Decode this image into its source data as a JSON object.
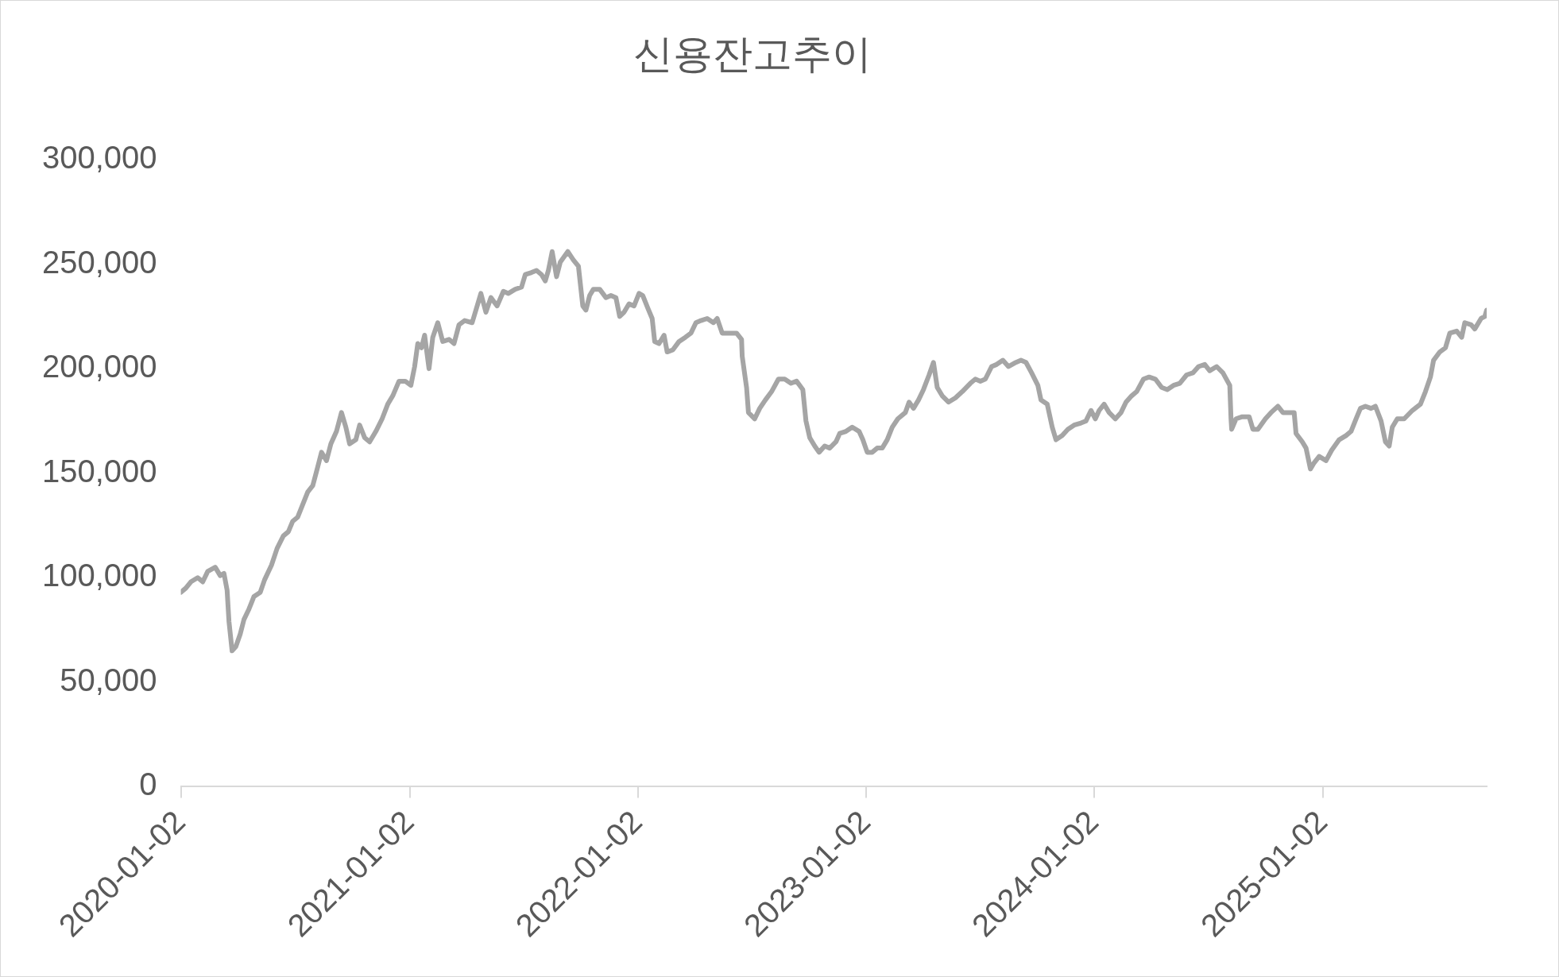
{
  "chart_data": {
    "type": "line",
    "title": "신용잔고추이",
    "color": "#a5a5a5",
    "marker": "none",
    "line_style": "solid",
    "grid": false,
    "legend": false,
    "xlim": [
      "2020-01-02",
      "2025-09-21"
    ],
    "xticks": [
      "2020-01-02",
      "2021-01-02",
      "2022-01-02",
      "2023-01-02",
      "2024-01-02",
      "2025-01-02"
    ],
    "ylim": [
      0,
      300000
    ],
    "yticks": [
      0,
      {
        "value": 50000,
        "label": "50,000"
      },
      {
        "value": 100000,
        "label": "100,000"
      },
      {
        "value": 150000,
        "label": "150,000"
      },
      {
        "value": 200000,
        "label": "200,000"
      },
      {
        "value": 250000,
        "label": "250,000"
      },
      {
        "value": 300000,
        "label": "300,000"
      }
    ],
    "x": [
      "2020-01-02",
      "2020-01-10",
      "2020-01-18",
      "2020-01-29",
      "2020-02-06",
      "2020-02-14",
      "2020-02-26",
      "2020-03-05",
      "2020-03-11",
      "2020-03-16",
      "2020-03-19",
      "2020-03-24",
      "2020-03-30",
      "2020-04-06",
      "2020-04-12",
      "2020-04-20",
      "2020-04-28",
      "2020-05-08",
      "2020-05-15",
      "2020-05-26",
      "2020-06-04",
      "2020-06-14",
      "2020-06-22",
      "2020-06-29",
      "2020-07-07",
      "2020-07-15",
      "2020-07-23",
      "2020-07-31",
      "2020-08-08",
      "2020-08-14",
      "2020-08-22",
      "2020-08-29",
      "2020-09-07",
      "2020-09-15",
      "2020-09-22",
      "2020-09-28",
      "2020-10-08",
      "2020-10-14",
      "2020-10-22",
      "2020-10-30",
      "2020-11-09",
      "2020-11-19",
      "2020-11-28",
      "2020-12-06",
      "2020-12-16",
      "2020-12-26",
      "2021-01-04",
      "2021-01-10",
      "2021-01-15",
      "2021-01-21",
      "2021-01-26",
      "2021-02-02",
      "2021-02-08",
      "2021-02-16",
      "2021-02-24",
      "2021-03-06",
      "2021-03-14",
      "2021-03-22",
      "2021-03-31",
      "2021-04-12",
      "2021-04-21",
      "2021-04-26",
      "2021-05-04",
      "2021-05-12",
      "2021-05-22",
      "2021-06-01",
      "2021-06-09",
      "2021-06-20",
      "2021-06-30",
      "2021-07-06",
      "2021-07-16",
      "2021-07-24",
      "2021-08-01",
      "2021-08-07",
      "2021-08-12",
      "2021-08-18",
      "2021-08-25",
      "2021-08-31",
      "2021-09-12",
      "2021-09-21",
      "2021-09-29",
      "2021-10-06",
      "2021-10-11",
      "2021-10-17",
      "2021-10-23",
      "2021-11-02",
      "2021-11-12",
      "2021-11-20",
      "2021-11-28",
      "2021-12-04",
      "2021-12-11",
      "2021-12-19",
      "2021-12-27",
      "2022-01-04",
      "2022-01-10",
      "2022-01-18",
      "2022-01-25",
      "2022-01-29",
      "2022-02-05",
      "2022-02-13",
      "2022-02-18",
      "2022-02-27",
      "2022-03-09",
      "2022-03-19",
      "2022-03-28",
      "2022-04-05",
      "2022-04-13",
      "2022-04-23",
      "2022-05-03",
      "2022-05-09",
      "2022-05-17",
      "2022-05-28",
      "2022-06-09",
      "2022-06-17",
      "2022-06-18",
      "2022-06-25",
      "2022-06-28",
      "2022-07-08",
      "2022-07-16",
      "2022-07-25",
      "2022-08-04",
      "2022-08-15",
      "2022-08-25",
      "2022-09-04",
      "2022-09-13",
      "2022-09-23",
      "2022-09-28",
      "2022-10-04",
      "2022-10-12",
      "2022-10-19",
      "2022-10-28",
      "2022-11-05",
      "2022-11-15",
      "2022-11-21",
      "2022-12-01",
      "2022-12-11",
      "2022-12-22",
      "2022-12-28",
      "2023-01-04",
      "2023-01-12",
      "2023-01-20",
      "2023-01-28",
      "2023-02-05",
      "2023-02-13",
      "2023-02-22",
      "2023-03-06",
      "2023-03-12",
      "2023-03-19",
      "2023-03-27",
      "2023-04-04",
      "2023-04-13",
      "2023-04-20",
      "2023-04-26",
      "2023-05-04",
      "2023-05-14",
      "2023-05-25",
      "2023-06-05",
      "2023-06-18",
      "2023-06-26",
      "2023-07-04",
      "2023-07-12",
      "2023-07-22",
      "2023-07-30",
      "2023-08-09",
      "2023-08-18",
      "2023-08-30",
      "2023-09-07",
      "2023-09-15",
      "2023-09-24",
      "2023-10-04",
      "2023-10-09",
      "2023-10-19",
      "2023-10-27",
      "2023-11-02",
      "2023-11-12",
      "2023-11-21",
      "2023-12-01",
      "2023-12-12",
      "2023-12-20",
      "2023-12-28",
      "2024-01-04",
      "2024-01-10",
      "2024-01-18",
      "2024-01-26",
      "2024-02-05",
      "2024-02-14",
      "2024-02-22",
      "2024-03-02",
      "2024-03-10",
      "2024-03-21",
      "2024-03-30",
      "2024-04-09",
      "2024-04-19",
      "2024-04-28",
      "2024-05-08",
      "2024-05-18",
      "2024-05-29",
      "2024-06-08",
      "2024-06-17",
      "2024-06-27",
      "2024-07-05",
      "2024-07-16",
      "2024-07-26",
      "2024-08-06",
      "2024-08-08",
      "2024-08-09",
      "2024-08-16",
      "2024-08-26",
      "2024-09-06",
      "2024-09-12",
      "2024-09-20",
      "2024-10-02",
      "2024-10-11",
      "2024-10-22",
      "2024-10-30",
      "2024-11-09",
      "2024-11-17",
      "2024-11-20",
      "2024-11-30",
      "2024-12-06",
      "2024-12-13",
      "2024-12-19",
      "2024-12-27",
      "2025-01-07",
      "2025-01-16",
      "2025-01-28",
      "2025-02-08",
      "2025-02-16",
      "2025-02-24",
      "2025-03-03",
      "2025-03-11",
      "2025-03-20",
      "2025-03-27",
      "2025-04-05",
      "2025-04-12",
      "2025-04-18",
      "2025-04-23",
      "2025-05-01",
      "2025-05-12",
      "2025-05-25",
      "2025-06-07",
      "2025-06-15",
      "2025-06-23",
      "2025-06-28",
      "2025-07-08",
      "2025-07-17",
      "2025-07-24",
      "2025-08-04",
      "2025-08-12",
      "2025-08-17",
      "2025-08-27",
      "2025-09-02",
      "2025-09-12",
      "2025-09-18",
      "2025-09-21"
    ],
    "values": [
      93000,
      95000,
      98000,
      100000,
      98000,
      103000,
      105000,
      101000,
      102000,
      94000,
      79000,
      65000,
      67000,
      73000,
      80000,
      85000,
      91000,
      93000,
      99000,
      106000,
      114000,
      120000,
      122000,
      127000,
      129000,
      135000,
      141000,
      144000,
      153000,
      160000,
      156000,
      164000,
      170000,
      179000,
      172000,
      164000,
      166000,
      173000,
      167000,
      165000,
      170000,
      176000,
      183000,
      187000,
      194000,
      194000,
      192000,
      201000,
      212000,
      210000,
      216000,
      200000,
      215000,
      222000,
      213000,
      214000,
      212000,
      221000,
      223000,
      222000,
      231000,
      236000,
      227000,
      234000,
      230000,
      237000,
      236000,
      238000,
      239000,
      245000,
      246000,
      247000,
      245000,
      242000,
      247000,
      256000,
      244000,
      251000,
      256000,
      252000,
      249000,
      230000,
      228000,
      235000,
      238000,
      238000,
      234000,
      235000,
      234000,
      225000,
      227000,
      231000,
      230000,
      236000,
      235000,
      229000,
      224000,
      213000,
      212000,
      216000,
      208000,
      209000,
      213000,
      215000,
      217000,
      222000,
      223000,
      224000,
      222000,
      224000,
      217000,
      217000,
      217000,
      214000,
      206000,
      191000,
      179000,
      176000,
      181000,
      185000,
      189000,
      195000,
      195000,
      193000,
      194000,
      190000,
      175000,
      167000,
      163000,
      160000,
      163000,
      162000,
      165000,
      169000,
      170000,
      172000,
      170000,
      166000,
      160000,
      160000,
      162000,
      162000,
      166000,
      172000,
      176000,
      179000,
      184000,
      181000,
      185000,
      190000,
      197000,
      203000,
      191000,
      187000,
      184000,
      186000,
      189000,
      193000,
      195000,
      194000,
      195000,
      201000,
      202000,
      204000,
      201000,
      203000,
      204000,
      203000,
      198000,
      192000,
      185000,
      183000,
      172000,
      166000,
      168000,
      171000,
      173000,
      174000,
      175000,
      180000,
      176000,
      180000,
      183000,
      179000,
      176000,
      179000,
      184000,
      187000,
      189000,
      195000,
      196000,
      195000,
      191000,
      190000,
      192000,
      193000,
      197000,
      198000,
      201000,
      202000,
      199000,
      201000,
      198000,
      192000,
      176000,
      171000,
      176000,
      177000,
      177000,
      171000,
      171000,
      176000,
      179000,
      182000,
      179000,
      179000,
      179000,
      169000,
      165000,
      162000,
      152000,
      155000,
      158000,
      156000,
      161000,
      166000,
      168000,
      170000,
      176000,
      181000,
      182000,
      181000,
      182000,
      175000,
      165000,
      163000,
      172000,
      176000,
      176000,
      180000,
      183000,
      189000,
      196000,
      204000,
      208000,
      210000,
      217000,
      218000,
      215000,
      222000,
      221000,
      219000,
      224000,
      225000,
      228000
    ]
  }
}
